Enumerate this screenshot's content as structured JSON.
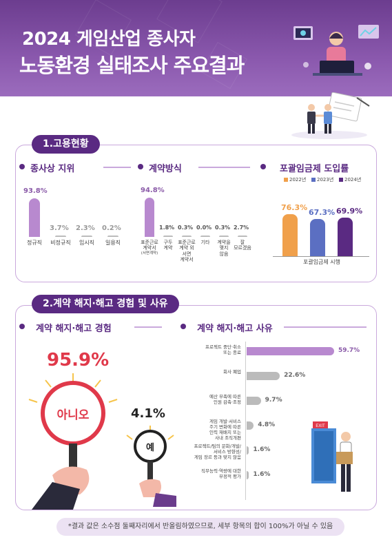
{
  "header": {
    "title_line1": "2024 게임산업 종사자",
    "title_line2": "노동환경 실태조사 주요결과"
  },
  "section1": {
    "title": "1.고용현황",
    "status": {
      "title": "종사상 지위",
      "items": [
        {
          "label": "정규직",
          "value": 93.8,
          "display": "93.8%"
        },
        {
          "label": "비정규직",
          "value": 3.7,
          "display": "3.7%"
        },
        {
          "label": "임시직",
          "value": 2.3,
          "display": "2.3%"
        },
        {
          "label": "일용직",
          "value": 0.2,
          "display": "0.2%"
        }
      ]
    },
    "contract": {
      "title": "계약방식",
      "items": [
        {
          "label": "표준근로\n계약서",
          "note": "(서면계약)",
          "value": 94.8,
          "display": "94.8%"
        },
        {
          "label": "구두\n계약",
          "value": 1.8,
          "display": "1.8%"
        },
        {
          "label": "표준근로\n계약 외\n서면\n계약서",
          "value": 0.3,
          "display": "0.3%"
        },
        {
          "label": "기타",
          "value": 0.0,
          "display": "0.0%"
        },
        {
          "label": "계약을\n맺지\n않음",
          "value": 0.3,
          "display": "0.3%"
        },
        {
          "label": "잘\n모르겠음",
          "value": 2.7,
          "display": "2.7%"
        }
      ]
    },
    "inclusive": {
      "title": "포괄임금제 도입률",
      "legend": [
        "2022년",
        "2023년",
        "2024년"
      ],
      "colors": [
        "#f0a04b",
        "#5b6fc2",
        "#5a2a82"
      ],
      "values": [
        76.3,
        67.3,
        69.9
      ],
      "displays": [
        "76.3%",
        "67.3%",
        "69.9%"
      ],
      "xlabel": "포괄임금제 시행"
    }
  },
  "section2": {
    "title": "2.계약 해지·해고 경험 및 사유",
    "experience": {
      "title": "계약 해지·해고 경험",
      "no_value": "95.9%",
      "no_label": "아니오",
      "yes_value": "4.1%",
      "yes_label": "예"
    },
    "reasons": {
      "title": "계약 해지·해고 사유",
      "items": [
        {
          "label": "프로젝트 중단·취소\n또는 종료",
          "value": 59.7,
          "display": "59.7%"
        },
        {
          "label": "회사 폐업",
          "value": 22.6,
          "display": "22.6%"
        },
        {
          "label": "예산 부족에 따른\n인원 감축·조정",
          "value": 9.7,
          "display": "9.7%"
        },
        {
          "label": "게임 개발·서비스\n주기 변화에 따른\n인력 재배치 또는\n사내 조직개편",
          "value": 4.8,
          "display": "4.8%"
        },
        {
          "label": "프로젝트/팀의 문화/개발/\n서비스 방향성/\n게임 장르 등과 맞지 않음",
          "value": 1.6,
          "display": "1.6%"
        },
        {
          "label": "직무능력·역량에 대한\n부정적 평가",
          "value": 1.6,
          "display": "1.6%"
        }
      ],
      "exit_sign": "EXIT"
    }
  },
  "footer": "*결과 값은 소수점 둘째자리에서 반올림하였으므로, 세부 항목의 합이 100%가 아닐 수 있음",
  "chart_data": [
    {
      "type": "bar",
      "title": "종사상 지위",
      "categories": [
        "정규직",
        "비정규직",
        "임시직",
        "일용직"
      ],
      "values": [
        93.8,
        3.7,
        2.3,
        0.2
      ]
    },
    {
      "type": "bar",
      "title": "계약방식",
      "categories": [
        "표준근로 계약서 (서면계약)",
        "구두 계약",
        "표준근로 계약 외 서면 계약서",
        "기타",
        "계약을 맺지 않음",
        "잘 모르겠음"
      ],
      "values": [
        94.8,
        1.8,
        0.3,
        0.0,
        0.3,
        2.7
      ]
    },
    {
      "type": "bar",
      "title": "포괄임금제 도입률",
      "categories": [
        "포괄임금제 시행"
      ],
      "series": [
        {
          "name": "2022년",
          "values": [
            76.3
          ]
        },
        {
          "name": "2023년",
          "values": [
            67.3
          ]
        },
        {
          "name": "2024년",
          "values": [
            69.9
          ]
        }
      ]
    },
    {
      "type": "bar",
      "title": "계약 해지·해고 사유",
      "categories": [
        "프로젝트 중단·취소 또는 종료",
        "회사 폐업",
        "예산 부족에 따른 인원 감축·조정",
        "게임 개발·서비스 주기 변화에 따른 인력 재배치 또는 사내 조직개편",
        "프로젝트/팀의 문화/개발/서비스 방향성/게임 장르 등과 맞지 않음",
        "직무능력·역량에 대한 부정적 평가"
      ],
      "values": [
        59.7,
        22.6,
        9.7,
        4.8,
        1.6,
        1.6
      ]
    }
  ]
}
